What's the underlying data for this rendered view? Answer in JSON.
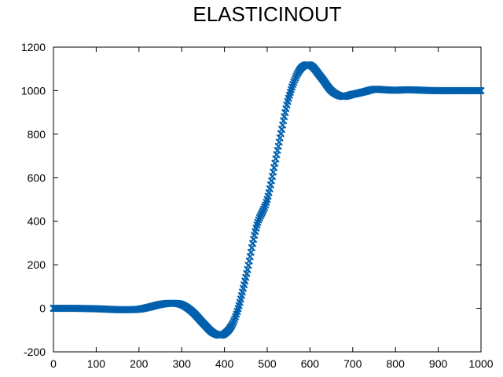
{
  "chart_data": {
    "type": "scatter",
    "title": "ELASTICINOUT",
    "xlabel": "",
    "ylabel": "",
    "xlim": [
      0,
      1000
    ],
    "ylim": [
      -200,
      1200
    ],
    "xticks": [
      0,
      100,
      200,
      300,
      400,
      500,
      600,
      700,
      800,
      900,
      1000
    ],
    "yticks": [
      -200,
      0,
      200,
      400,
      600,
      800,
      1000,
      1200
    ],
    "grid": false,
    "legend": "none",
    "marker": "x",
    "color": "#0060ad",
    "series": [
      {
        "name": "",
        "x": [
          0,
          25,
          50,
          75,
          100,
          125,
          150,
          175,
          200,
          225,
          250,
          275,
          300,
          325,
          350,
          375,
          400,
          425,
          450,
          475,
          500,
          525,
          550,
          575,
          600,
          625,
          650,
          675,
          700,
          725,
          750,
          775,
          800,
          825,
          850,
          875,
          900,
          925,
          950,
          975,
          1000
        ],
        "y": [
          0,
          0,
          0,
          -1,
          -2,
          -4,
          -6,
          -6,
          -4,
          6,
          18,
          23,
          17,
          -16,
          -68,
          -114,
          -117,
          -44,
          142,
          376,
          500,
          735,
          965,
          1092,
          1117,
          1064,
          1000,
          974,
          983,
          994,
          1006,
          1004,
          1002,
          1004,
          1003,
          1001,
          1000,
          1000,
          1000,
          1000,
          1000
        ]
      }
    ]
  }
}
